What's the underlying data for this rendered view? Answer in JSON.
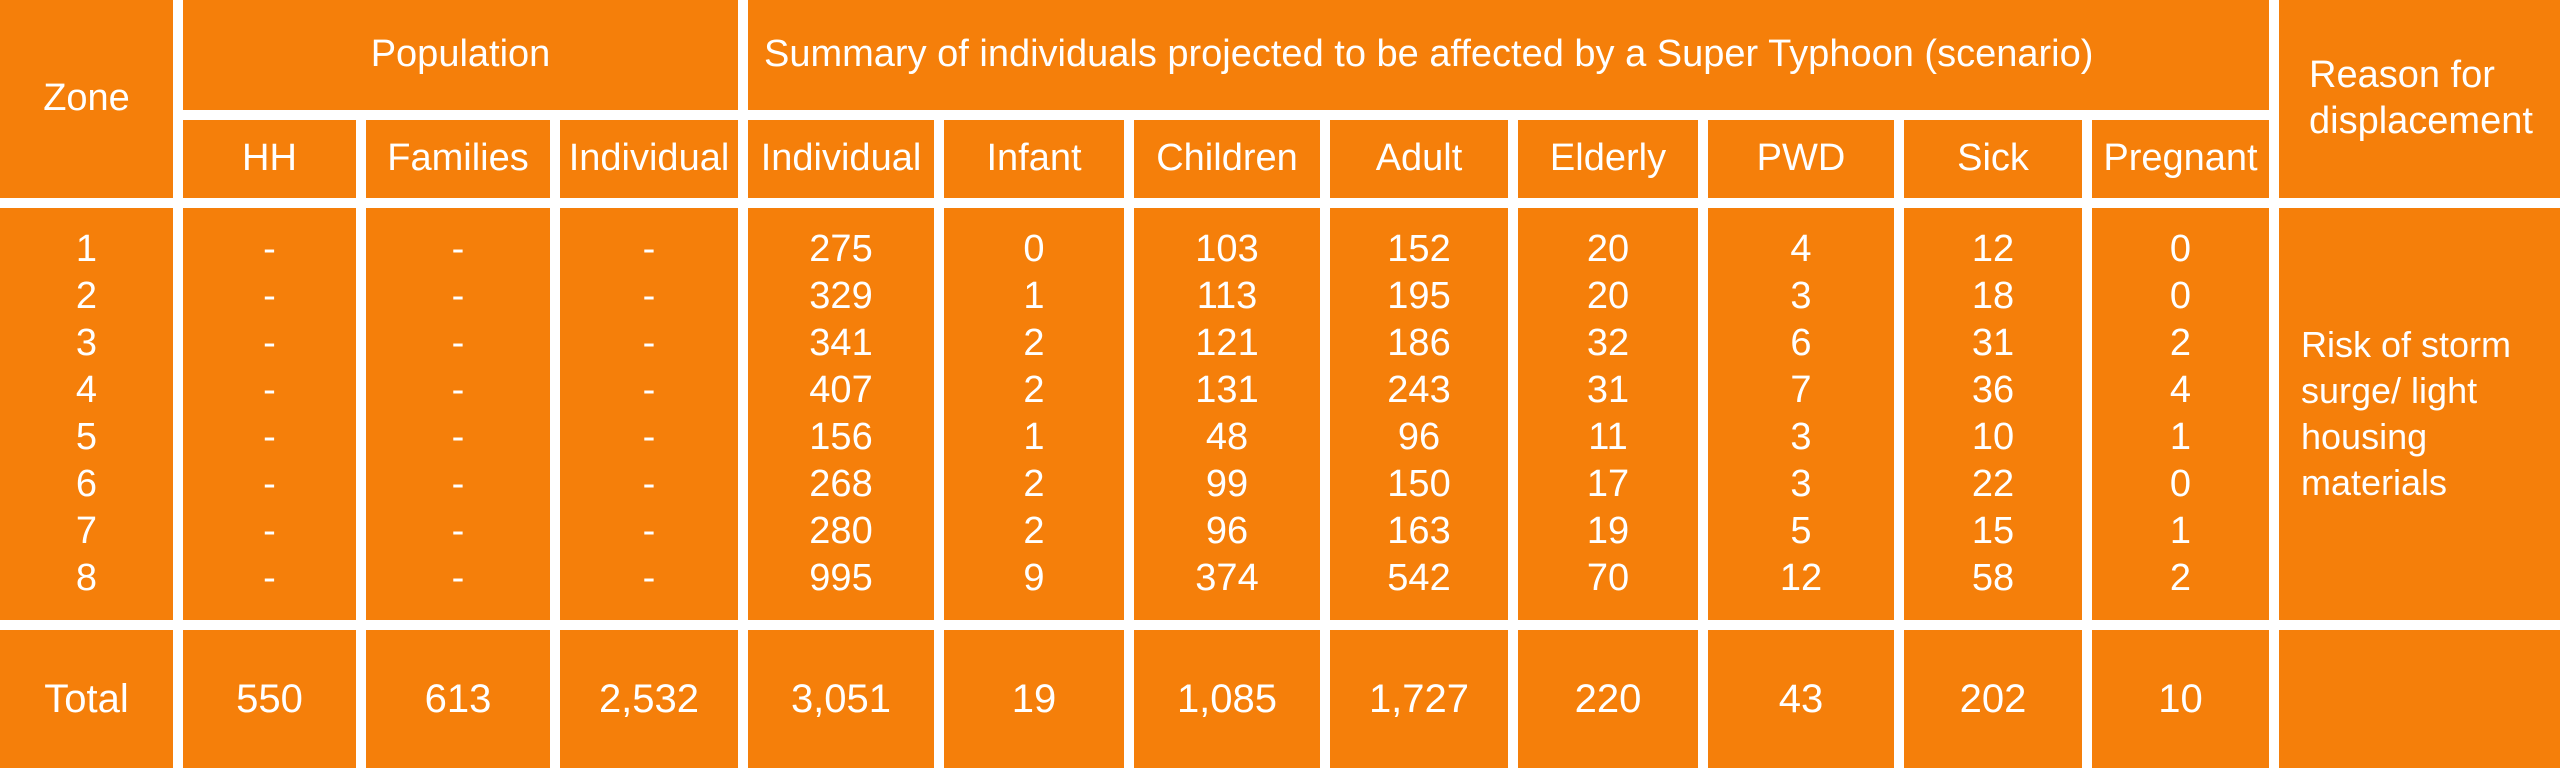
{
  "headers": {
    "zone": "Zone",
    "population": "Population",
    "summary": "Summary of individuals projected to be affected by a Super Typhoon (scenario)",
    "reason": "Reason for displacement",
    "hh": "HH",
    "families": "Families",
    "individual_pop": "Individual",
    "individual": "Individual",
    "infant": "Infant",
    "children": "Children",
    "adult": "Adult",
    "elderly": "Elderly",
    "pwd": "PWD",
    "sick": "Sick",
    "pregnant": "Pregnant"
  },
  "columns": {
    "zone": [
      "1",
      "2",
      "3",
      "4",
      "5",
      "6",
      "7",
      "8"
    ],
    "hh": [
      "-",
      "-",
      "-",
      "-",
      "-",
      "-",
      "-",
      "-"
    ],
    "families": [
      "-",
      "-",
      "-",
      "-",
      "-",
      "-",
      "-",
      "-"
    ],
    "individual_pop": [
      "-",
      "-",
      "-",
      "-",
      "-",
      "-",
      "-",
      "-"
    ],
    "individual": [
      "275",
      "329",
      "341",
      "407",
      "156",
      "268",
      "280",
      "995"
    ],
    "infant": [
      "0",
      "1",
      "2",
      "2",
      "1",
      "2",
      "2",
      "9"
    ],
    "children": [
      "103",
      "113",
      "121",
      "131",
      "48",
      "99",
      "96",
      "374"
    ],
    "adult": [
      "152",
      "195",
      "186",
      "243",
      "96",
      "150",
      "163",
      "542"
    ],
    "elderly": [
      "20",
      "20",
      "32",
      "31",
      "11",
      "17",
      "19",
      "70"
    ],
    "pwd": [
      "4",
      "3",
      "6",
      "7",
      "3",
      "3",
      "5",
      "12"
    ],
    "sick": [
      "12",
      "18",
      "31",
      "36",
      "10",
      "22",
      "15",
      "58"
    ],
    "pregnant": [
      "0",
      "0",
      "2",
      "4",
      "1",
      "0",
      "1",
      "2"
    ]
  },
  "reason_text": "Risk of storm surge/ light housing materials",
  "totals": {
    "label": "Total",
    "hh": "550",
    "families": "613",
    "individual_pop": "2,532",
    "individual": "3,051",
    "infant": "19",
    "children": "1,085",
    "adult": "1,727",
    "elderly": "220",
    "pwd": "43",
    "sick": "202",
    "pregnant": "10",
    "reason": ""
  },
  "colors": {
    "cell_fill": "#f57f0a",
    "grid": "#ffffff",
    "text": "#ffffff"
  }
}
